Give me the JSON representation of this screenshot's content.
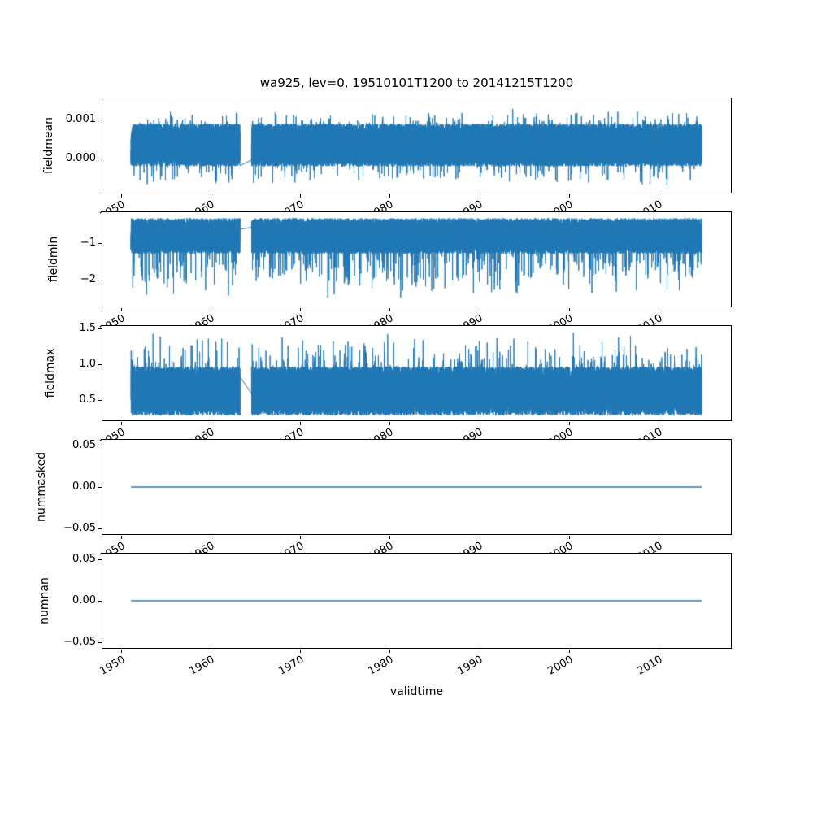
{
  "figure": {
    "title": "wa925, lev=0, 19510101T1200 to 20141215T1200",
    "xlabel": "validtime",
    "line_color": "#1f77b4",
    "background": "#ffffff",
    "text_color": "#000000"
  },
  "chart_data": [
    {
      "type": "line",
      "ylabel": "fieldmean",
      "ylim": [
        -0.00088,
        0.00155
      ],
      "ytick_values": [
        0.001,
        0.0
      ],
      "ytick_labels": [
        "0.001",
        "0.000"
      ],
      "xlim": [
        1947.8,
        2018.2
      ],
      "xtick_values": [
        1950,
        1960,
        1970,
        1980,
        1990,
        2000,
        2010
      ],
      "xtick_labels": [
        "1950",
        "1960",
        "1970",
        "1980",
        "1990",
        "2000",
        "2010"
      ],
      "x_start": 1951.0,
      "x_end": 2014.96,
      "gap": [
        1963.2,
        1964.5
      ],
      "grid": false,
      "series": {
        "name": "fieldmean",
        "kind": "noisy",
        "base": 0.00035,
        "halfwidth": 0.00055,
        "pos_spike": 0.0004,
        "neg_spike": 0.0005,
        "spike_prob": 0.04,
        "points_per_year": 365,
        "seed": 101,
        "approx_min": -0.0007,
        "approx_max": 0.0013
      }
    },
    {
      "type": "line",
      "ylabel": "fieldmin",
      "ylim": [
        -2.78,
        -0.11
      ],
      "ytick_values": [
        -1,
        -2
      ],
      "ytick_labels": [
        "−1",
        "−2"
      ],
      "xlim": [
        1947.8,
        2018.2
      ],
      "xtick_values": [
        1950,
        1960,
        1970,
        1980,
        1990,
        2000,
        2010
      ],
      "xtick_labels": [
        "1950",
        "1960",
        "1970",
        "1980",
        "1990",
        "2000",
        "2010"
      ],
      "x_start": 1951.0,
      "x_end": 2014.96,
      "gap": [
        1963.2,
        1964.5
      ],
      "grid": false,
      "series": {
        "name": "fieldmin",
        "kind": "noisy",
        "base": -0.78,
        "halfwidth": 0.5,
        "pos_spike": 0,
        "neg_spike": 1.3,
        "spike_prob": 0.03,
        "points_per_year": 365,
        "seed": 202,
        "approx_min": -2.6,
        "approx_max": -0.25
      }
    },
    {
      "type": "line",
      "ylabel": "fieldmax",
      "ylim": [
        0.2,
        1.55
      ],
      "ytick_values": [
        1.5,
        1.0,
        0.5
      ],
      "ytick_labels": [
        "1.5",
        "1.0",
        "0.5"
      ],
      "xlim": [
        1947.8,
        2018.2
      ],
      "xtick_values": [
        1950,
        1960,
        1970,
        1980,
        1990,
        2000,
        2010
      ],
      "xtick_labels": [
        "1950",
        "1960",
        "1970",
        "1980",
        "1990",
        "2000",
        "2010"
      ],
      "x_start": 1951.0,
      "x_end": 2014.96,
      "gap": [
        1963.2,
        1964.5
      ],
      "grid": false,
      "series": {
        "name": "fieldmax",
        "kind": "noisy",
        "base": 0.62,
        "halfwidth": 0.35,
        "pos_spike": 0.5,
        "neg_spike": 0,
        "spike_prob": 0.03,
        "points_per_year": 365,
        "seed": 303,
        "approx_min": 0.27,
        "approx_max": 1.45
      }
    },
    {
      "type": "line",
      "ylabel": "nummasked",
      "ylim": [
        -0.058,
        0.058
      ],
      "ytick_values": [
        0.05,
        0.0,
        -0.05
      ],
      "ytick_labels": [
        "0.05",
        "0.00",
        "−0.05"
      ],
      "xlim": [
        1947.8,
        2018.2
      ],
      "xtick_values": [
        1950,
        1960,
        1970,
        1980,
        1990,
        2000,
        2010
      ],
      "xtick_labels": [
        "1950",
        "1960",
        "1970",
        "1980",
        "1990",
        "2000",
        "2010"
      ],
      "x_start": 1951.0,
      "x_end": 2014.96,
      "gap": [
        1963.2,
        1964.5
      ],
      "grid": false,
      "series": {
        "name": "nummasked",
        "kind": "constant",
        "value": 0.0
      }
    },
    {
      "type": "line",
      "ylabel": "numnan",
      "ylim": [
        -0.058,
        0.058
      ],
      "ytick_values": [
        0.05,
        0.0,
        -0.05
      ],
      "ytick_labels": [
        "0.05",
        "0.00",
        "−0.05"
      ],
      "xlim": [
        1947.8,
        2018.2
      ],
      "xtick_values": [
        1950,
        1960,
        1970,
        1980,
        1990,
        2000,
        2010
      ],
      "xtick_labels": [
        "1950",
        "1960",
        "1970",
        "1980",
        "1990",
        "2000",
        "2010"
      ],
      "x_start": 1951.0,
      "x_end": 2014.96,
      "gap": [
        1963.2,
        1964.5
      ],
      "grid": false,
      "series": {
        "name": "numnan",
        "kind": "constant",
        "value": 0.0
      }
    }
  ]
}
